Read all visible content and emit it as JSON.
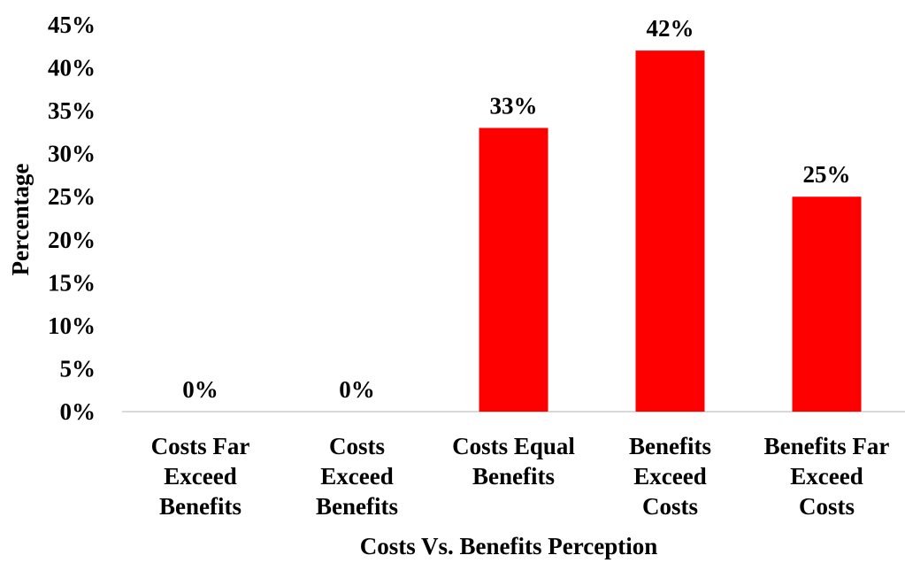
{
  "chart_data": {
    "type": "bar",
    "categories": [
      [
        "Costs Far",
        "Exceed",
        "Benefits"
      ],
      [
        "Costs",
        "Exceed",
        "Benefits"
      ],
      [
        "Costs Equal",
        "Benefits"
      ],
      [
        "Benefits",
        "Exceed",
        "Costs"
      ],
      [
        "Benefits Far",
        "Exceed",
        "Costs"
      ]
    ],
    "values": [
      0,
      0,
      33,
      42,
      25
    ],
    "data_labels": [
      "0%",
      "0%",
      "33%",
      "42%",
      "25%"
    ],
    "title": "",
    "xlabel": "Costs Vs. Benefits Perception",
    "ylabel": "Percentage",
    "ylim": [
      0,
      45
    ],
    "yticks": [
      0,
      5,
      10,
      15,
      20,
      25,
      30,
      35,
      40,
      45
    ],
    "ytick_labels": [
      "0%",
      "5%",
      "10%",
      "15%",
      "20%",
      "25%",
      "30%",
      "35%",
      "40%",
      "45%"
    ],
    "grid": false,
    "legend": "none",
    "bar_color": "#ff0000",
    "axis_color": "#d9d9d9"
  }
}
